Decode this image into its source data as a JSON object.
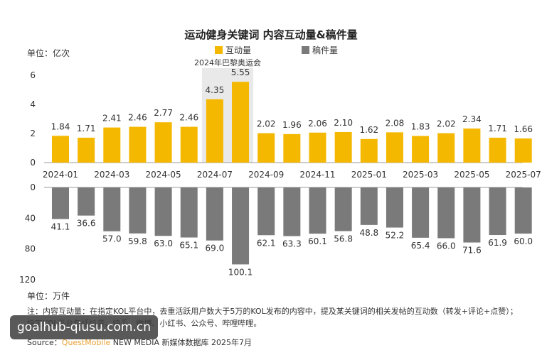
{
  "title": "运动健身关键词 内容互动量&稿件量",
  "unit_top": "单位：亿次",
  "unit_bottom": "单位：万件",
  "legend": {
    "interaction": "互动量",
    "articles": "稿件量"
  },
  "annotation": "2024年巴黎奥运会",
  "note": "注：内容互动量：在指定KOL平台中，去重活跃用户数大于5万的KOL发布的内容中，提及某关键词的相关发帖的互动数（转发+评论+点赞）；指定KOL平台包括抖音、快手、微博、小红书、公众号、哔哩哔哩。",
  "source_label": "Source：",
  "source_brand": "QuestMobile",
  "source_rest": " NEW MEDIA 新媒体数据库 2025年7月",
  "watermark": "goalhub-qiusu.com.cn",
  "colors": {
    "gold": "#f5b800",
    "gray": "#7a7a7a",
    "highlight": "#e9e9e9"
  },
  "chart_data": {
    "type": "bar",
    "categories": [
      "2024-01",
      "2024-02",
      "2024-03",
      "2024-04",
      "2024-05",
      "2024-06",
      "2024-07",
      "2024-08",
      "2024-09",
      "2024-10",
      "2024-11",
      "2024-12",
      "2025-01",
      "2025-02",
      "2025-03",
      "2025-04",
      "2025-05",
      "2025-06",
      "2025-07"
    ],
    "tick_labels": [
      "2024-01",
      "2024-03",
      "2024-05",
      "2024-07",
      "2024-09",
      "2024-11",
      "2025-01",
      "2025-03",
      "2025-05",
      "2025-07"
    ],
    "highlight_categories": [
      "2024-07",
      "2024-08"
    ],
    "series": [
      {
        "name": "互动量",
        "unit": "亿次",
        "values": [
          1.84,
          1.71,
          2.41,
          2.46,
          2.77,
          2.46,
          4.35,
          5.55,
          2.02,
          1.96,
          2.06,
          2.1,
          1.62,
          2.08,
          1.83,
          2.02,
          2.34,
          1.71,
          1.66
        ]
      },
      {
        "name": "稿件量",
        "unit": "万件",
        "values": [
          41.1,
          36.6,
          57.0,
          59.8,
          63.0,
          65.1,
          69.0,
          100.1,
          62.1,
          63.3,
          60.1,
          56.8,
          48.8,
          52.2,
          65.4,
          66.0,
          71.6,
          61.9,
          60.0
        ]
      }
    ],
    "top_axis": {
      "ticks": [
        0,
        2,
        4,
        6
      ],
      "range": [
        0,
        6
      ]
    },
    "bottom_axis": {
      "ticks": [
        0,
        40,
        80,
        120
      ],
      "range": [
        0,
        120
      ]
    }
  }
}
